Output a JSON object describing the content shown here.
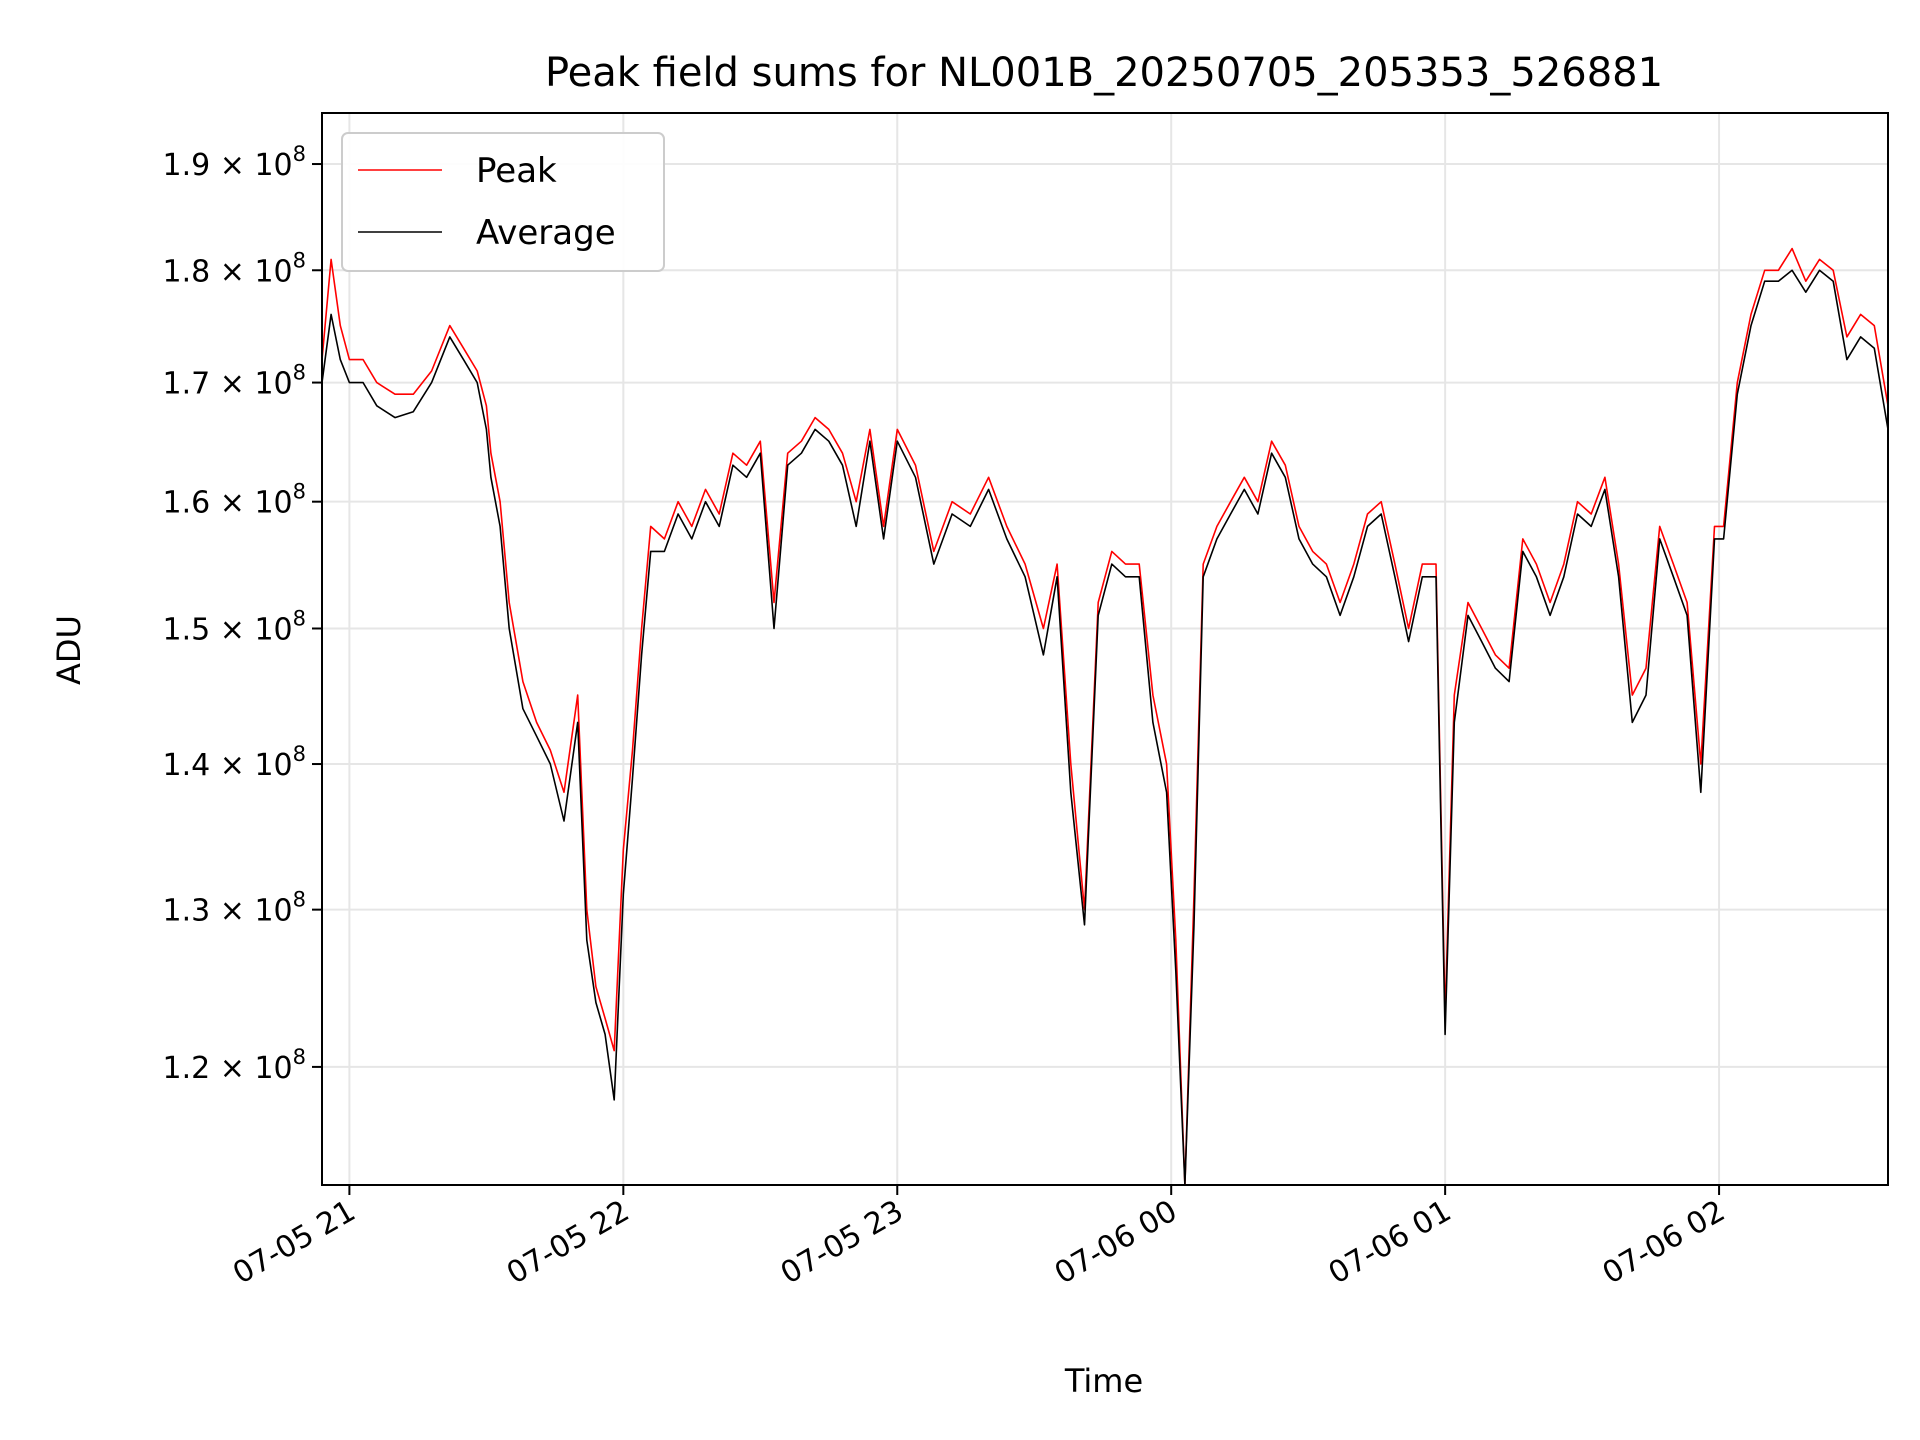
{
  "chart_data": {
    "type": "line",
    "title": "Peak field sums for NL001B_20250705_205353_526881",
    "xlabel": "Time",
    "ylabel": "ADU",
    "y_scale": "log",
    "grid": true,
    "legend_placement": "top-left",
    "xlim": [
      "07-05 20:54",
      "07-06 02:37"
    ],
    "ylim": [
      113000000,
      195000000
    ],
    "x_ticks": [
      "07-05 21",
      "07-05 22",
      "07-05 23",
      "07-06 00",
      "07-06 01",
      "07-06 02"
    ],
    "y_ticks": [
      {
        "value": 120000000,
        "mantissa": "1.2"
      },
      {
        "value": 130000000,
        "mantissa": "1.3"
      },
      {
        "value": 140000000,
        "mantissa": "1.4"
      },
      {
        "value": 150000000,
        "mantissa": "1.5"
      },
      {
        "value": 160000000,
        "mantissa": "1.6"
      },
      {
        "value": 170000000,
        "mantissa": "1.7"
      },
      {
        "value": 180000000,
        "mantissa": "1.8"
      },
      {
        "value": 190000000,
        "mantissa": "1.9"
      }
    ],
    "y_tick_base": "10",
    "y_tick_exponent": "8",
    "y_tick_times": "×",
    "series": [
      {
        "name": "Peak",
        "color": "#ff0000",
        "x": [
          "07-05 20:54",
          "07-05 20:56",
          "07-05 20:58",
          "07-05 21:00",
          "07-05 21:03",
          "07-05 21:06",
          "07-05 21:10",
          "07-05 21:14",
          "07-05 21:18",
          "07-05 21:22",
          "07-05 21:25",
          "07-05 21:28",
          "07-05 21:30",
          "07-05 21:31",
          "07-05 21:33",
          "07-05 21:35",
          "07-05 21:38",
          "07-05 21:41",
          "07-05 21:44",
          "07-05 21:47",
          "07-05 21:50",
          "07-05 21:52",
          "07-05 21:54",
          "07-05 21:56",
          "07-05 21:58",
          "07-05 22:00",
          "07-05 22:02",
          "07-05 22:04",
          "07-05 22:06",
          "07-05 22:09",
          "07-05 22:12",
          "07-05 22:15",
          "07-05 22:18",
          "07-05 22:21",
          "07-05 22:24",
          "07-05 22:27",
          "07-05 22:30",
          "07-05 22:33",
          "07-05 22:36",
          "07-05 22:39",
          "07-05 22:42",
          "07-05 22:45",
          "07-05 22:48",
          "07-05 22:51",
          "07-05 22:54",
          "07-05 22:57",
          "07-05 23:00",
          "07-05 23:04",
          "07-05 23:08",
          "07-05 23:12",
          "07-05 23:16",
          "07-05 23:20",
          "07-05 23:24",
          "07-05 23:28",
          "07-05 23:32",
          "07-05 23:35",
          "07-05 23:38",
          "07-05 23:41",
          "07-05 23:44",
          "07-05 23:47",
          "07-05 23:50",
          "07-05 23:53",
          "07-05 23:56",
          "07-05 23:59",
          "07-06 00:01",
          "07-06 00:03",
          "07-06 00:05",
          "07-06 00:07",
          "07-06 00:10",
          "07-06 00:13",
          "07-06 00:16",
          "07-06 00:19",
          "07-06 00:22",
          "07-06 00:25",
          "07-06 00:28",
          "07-06 00:31",
          "07-06 00:34",
          "07-06 00:37",
          "07-06 00:40",
          "07-06 00:43",
          "07-06 00:46",
          "07-06 00:49",
          "07-06 00:52",
          "07-06 00:55",
          "07-06 00:58",
          "07-06 01:00",
          "07-06 01:02",
          "07-06 01:05",
          "07-06 01:08",
          "07-06 01:11",
          "07-06 01:14",
          "07-06 01:17",
          "07-06 01:20",
          "07-06 01:23",
          "07-06 01:26",
          "07-06 01:29",
          "07-06 01:32",
          "07-06 01:35",
          "07-06 01:38",
          "07-06 01:41",
          "07-06 01:44",
          "07-06 01:47",
          "07-06 01:50",
          "07-06 01:53",
          "07-06 01:56",
          "07-06 01:59",
          "07-06 02:01",
          "07-06 02:04",
          "07-06 02:07",
          "07-06 02:10",
          "07-06 02:13",
          "07-06 02:16",
          "07-06 02:19",
          "07-06 02:22",
          "07-06 02:25",
          "07-06 02:28",
          "07-06 02:31",
          "07-06 02:34",
          "07-06 02:37"
        ],
        "values": [
          172000000,
          181000000,
          175000000,
          172000000,
          172000000,
          170000000,
          169000000,
          169000000,
          171000000,
          175000000,
          173000000,
          171000000,
          168000000,
          164000000,
          160000000,
          152000000,
          146000000,
          143000000,
          141000000,
          138000000,
          145000000,
          130000000,
          125000000,
          123000000,
          121000000,
          134000000,
          141000000,
          150000000,
          158000000,
          157000000,
          160000000,
          158000000,
          161000000,
          159000000,
          164000000,
          163000000,
          165000000,
          152000000,
          164000000,
          165000000,
          167000000,
          166000000,
          164000000,
          160000000,
          166000000,
          158000000,
          166000000,
          163000000,
          156000000,
          160000000,
          159000000,
          162000000,
          158000000,
          155000000,
          150000000,
          155000000,
          140000000,
          130000000,
          152000000,
          156000000,
          155000000,
          155000000,
          145000000,
          140000000,
          128000000,
          113000000,
          131000000,
          155000000,
          158000000,
          160000000,
          162000000,
          160000000,
          165000000,
          163000000,
          158000000,
          156000000,
          155000000,
          152000000,
          155000000,
          159000000,
          160000000,
          155000000,
          150000000,
          155000000,
          155000000,
          123000000,
          145000000,
          152000000,
          150000000,
          148000000,
          147000000,
          157000000,
          155000000,
          152000000,
          155000000,
          160000000,
          159000000,
          162000000,
          155000000,
          145000000,
          147000000,
          158000000,
          155000000,
          152000000,
          140000000,
          158000000,
          158000000,
          170000000,
          176000000,
          180000000,
          180000000,
          182000000,
          179000000,
          181000000,
          180000000,
          174000000,
          176000000,
          175000000,
          168000000
        ]
      },
      {
        "name": "Average",
        "color": "#000000",
        "x": [
          "07-05 20:54",
          "07-05 20:56",
          "07-05 20:58",
          "07-05 21:00",
          "07-05 21:03",
          "07-05 21:06",
          "07-05 21:10",
          "07-05 21:14",
          "07-05 21:18",
          "07-05 21:22",
          "07-05 21:25",
          "07-05 21:28",
          "07-05 21:30",
          "07-05 21:31",
          "07-05 21:33",
          "07-05 21:35",
          "07-05 21:38",
          "07-05 21:41",
          "07-05 21:44",
          "07-05 21:47",
          "07-05 21:50",
          "07-05 21:52",
          "07-05 21:54",
          "07-05 21:56",
          "07-05 21:58",
          "07-05 22:00",
          "07-05 22:02",
          "07-05 22:04",
          "07-05 22:06",
          "07-05 22:09",
          "07-05 22:12",
          "07-05 22:15",
          "07-05 22:18",
          "07-05 22:21",
          "07-05 22:24",
          "07-05 22:27",
          "07-05 22:30",
          "07-05 22:33",
          "07-05 22:36",
          "07-05 22:39",
          "07-05 22:42",
          "07-05 22:45",
          "07-05 22:48",
          "07-05 22:51",
          "07-05 22:54",
          "07-05 22:57",
          "07-05 23:00",
          "07-05 23:04",
          "07-05 23:08",
          "07-05 23:12",
          "07-05 23:16",
          "07-05 23:20",
          "07-05 23:24",
          "07-05 23:28",
          "07-05 23:32",
          "07-05 23:35",
          "07-05 23:38",
          "07-05 23:41",
          "07-05 23:44",
          "07-05 23:47",
          "07-05 23:50",
          "07-05 23:53",
          "07-05 23:56",
          "07-05 23:59",
          "07-06 00:01",
          "07-06 00:03",
          "07-06 00:05",
          "07-06 00:07",
          "07-06 00:10",
          "07-06 00:13",
          "07-06 00:16",
          "07-06 00:19",
          "07-06 00:22",
          "07-06 00:25",
          "07-06 00:28",
          "07-06 00:31",
          "07-06 00:34",
          "07-06 00:37",
          "07-06 00:40",
          "07-06 00:43",
          "07-06 00:46",
          "07-06 00:49",
          "07-06 00:52",
          "07-06 00:55",
          "07-06 00:58",
          "07-06 01:00",
          "07-06 01:02",
          "07-06 01:05",
          "07-06 01:08",
          "07-06 01:11",
          "07-06 01:14",
          "07-06 01:17",
          "07-06 01:20",
          "07-06 01:23",
          "07-06 01:26",
          "07-06 01:29",
          "07-06 01:32",
          "07-06 01:35",
          "07-06 01:38",
          "07-06 01:41",
          "07-06 01:44",
          "07-06 01:47",
          "07-06 01:50",
          "07-06 01:53",
          "07-06 01:56",
          "07-06 01:59",
          "07-06 02:01",
          "07-06 02:04",
          "07-06 02:07",
          "07-06 02:10",
          "07-06 02:13",
          "07-06 02:16",
          "07-06 02:19",
          "07-06 02:22",
          "07-06 02:25",
          "07-06 02:28",
          "07-06 02:31",
          "07-06 02:34",
          "07-06 02:37"
        ],
        "values": [
          170000000,
          176000000,
          172000000,
          170000000,
          170000000,
          168000000,
          167000000,
          167500000,
          170000000,
          174000000,
          172000000,
          170000000,
          166000000,
          162000000,
          158000000,
          150000000,
          144000000,
          142000000,
          140000000,
          136000000,
          143000000,
          128000000,
          124000000,
          122000000,
          118000000,
          131000000,
          139000000,
          148000000,
          156000000,
          156000000,
          159000000,
          157000000,
          160000000,
          158000000,
          163000000,
          162000000,
          164000000,
          150000000,
          163000000,
          164000000,
          166000000,
          165000000,
          163000000,
          158000000,
          165000000,
          157000000,
          165000000,
          162000000,
          155000000,
          159000000,
          158000000,
          161000000,
          157000000,
          154000000,
          148000000,
          154000000,
          138000000,
          129000000,
          151000000,
          155000000,
          154000000,
          154000000,
          143000000,
          138000000,
          126000000,
          113000000,
          129000000,
          154000000,
          157000000,
          159000000,
          161000000,
          159000000,
          164000000,
          162000000,
          157000000,
          155000000,
          154000000,
          151000000,
          154000000,
          158000000,
          159000000,
          154000000,
          149000000,
          154000000,
          154000000,
          122000000,
          143000000,
          151000000,
          149000000,
          147000000,
          146000000,
          156000000,
          154000000,
          151000000,
          154000000,
          159000000,
          158000000,
          161000000,
          154000000,
          143000000,
          145000000,
          157000000,
          154000000,
          151000000,
          138000000,
          157000000,
          157000000,
          169000000,
          175000000,
          179000000,
          179000000,
          180000000,
          178000000,
          180000000,
          179000000,
          172000000,
          174000000,
          173000000,
          166000000
        ]
      }
    ]
  }
}
